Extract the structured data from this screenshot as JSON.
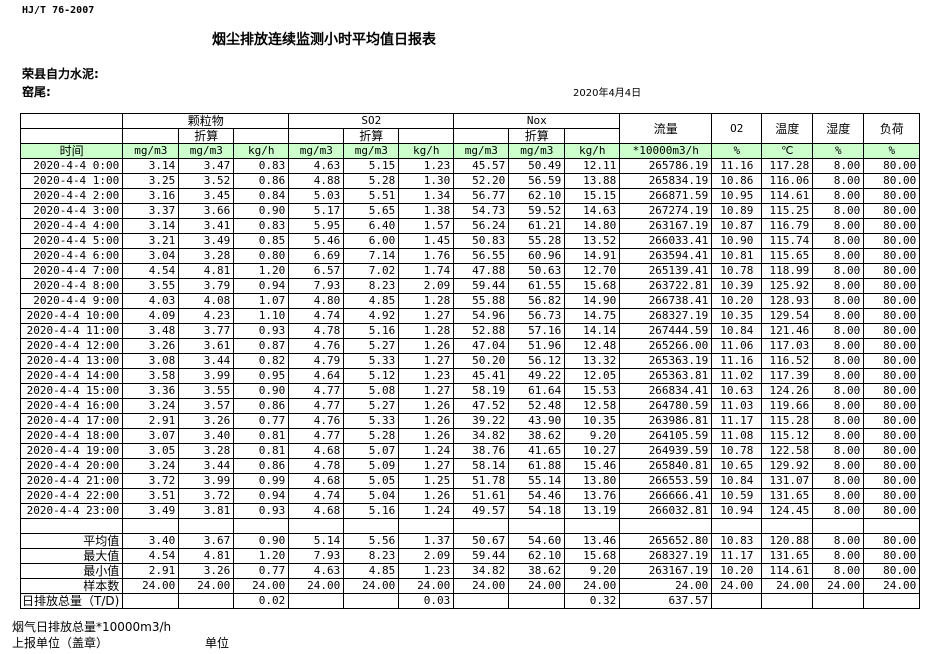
{
  "header": {
    "standard": "HJ/T  76-2007",
    "title": "烟尘排放连续监测小时平均值日报表",
    "company": "荣县自力水泥:",
    "kiln": "窑尾:",
    "date": "2020年4月4日"
  },
  "table": {
    "groups": {
      "particulate": "颗粒物",
      "so2": "SO2",
      "nox": "Nox",
      "converted": "折算",
      "flow": "流量",
      "o2": "O2",
      "temp": "温度",
      "humidity": "湿度",
      "load": "负荷",
      "time": "时间"
    },
    "units": [
      "mg/m3",
      "mg/m3",
      "kg/h",
      "mg/m3",
      "mg/m3",
      "kg/h",
      "mg/m3",
      "mg/m3",
      "kg/h",
      "*10000m3/h",
      "%",
      "℃",
      "%",
      "%"
    ],
    "rows": [
      [
        "2020-4-4 0:00",
        "3.14",
        "3.47",
        "0.83",
        "4.63",
        "5.15",
        "1.23",
        "45.57",
        "50.49",
        "12.11",
        "265786.19",
        "11.16",
        "117.28",
        "8.00",
        "80.00"
      ],
      [
        "2020-4-4 1:00",
        "3.25",
        "3.52",
        "0.86",
        "4.88",
        "5.28",
        "1.30",
        "52.20",
        "56.59",
        "13.88",
        "265834.19",
        "10.86",
        "116.06",
        "8.00",
        "80.00"
      ],
      [
        "2020-4-4 2:00",
        "3.16",
        "3.45",
        "0.84",
        "5.03",
        "5.51",
        "1.34",
        "56.77",
        "62.10",
        "15.15",
        "266871.59",
        "10.95",
        "114.61",
        "8.00",
        "80.00"
      ],
      [
        "2020-4-4 3:00",
        "3.37",
        "3.66",
        "0.90",
        "5.17",
        "5.65",
        "1.38",
        "54.73",
        "59.52",
        "14.63",
        "267274.19",
        "10.89",
        "115.25",
        "8.00",
        "80.00"
      ],
      [
        "2020-4-4 4:00",
        "3.14",
        "3.41",
        "0.83",
        "5.95",
        "6.40",
        "1.57",
        "56.24",
        "61.21",
        "14.80",
        "263167.19",
        "10.87",
        "116.79",
        "8.00",
        "80.00"
      ],
      [
        "2020-4-4 5:00",
        "3.21",
        "3.49",
        "0.85",
        "5.46",
        "6.00",
        "1.45",
        "50.83",
        "55.28",
        "13.52",
        "266033.41",
        "10.90",
        "115.74",
        "8.00",
        "80.00"
      ],
      [
        "2020-4-4 6:00",
        "3.04",
        "3.28",
        "0.80",
        "6.69",
        "7.14",
        "1.76",
        "56.55",
        "60.96",
        "14.91",
        "263594.41",
        "10.81",
        "115.65",
        "8.00",
        "80.00"
      ],
      [
        "2020-4-4 7:00",
        "4.54",
        "4.81",
        "1.20",
        "6.57",
        "7.02",
        "1.74",
        "47.88",
        "50.63",
        "12.70",
        "265139.41",
        "10.78",
        "118.99",
        "8.00",
        "80.00"
      ],
      [
        "2020-4-4 8:00",
        "3.55",
        "3.79",
        "0.94",
        "7.93",
        "8.23",
        "2.09",
        "59.44",
        "61.55",
        "15.68",
        "263722.81",
        "10.39",
        "125.92",
        "8.00",
        "80.00"
      ],
      [
        "2020-4-4 9:00",
        "4.03",
        "4.08",
        "1.07",
        "4.80",
        "4.85",
        "1.28",
        "55.88",
        "56.82",
        "14.90",
        "266738.41",
        "10.20",
        "128.93",
        "8.00",
        "80.00"
      ],
      [
        "2020-4-4 10:00",
        "4.09",
        "4.23",
        "1.10",
        "4.74",
        "4.92",
        "1.27",
        "54.96",
        "56.73",
        "14.75",
        "268327.19",
        "10.35",
        "129.54",
        "8.00",
        "80.00"
      ],
      [
        "2020-4-4 11:00",
        "3.48",
        "3.77",
        "0.93",
        "4.78",
        "5.16",
        "1.28",
        "52.88",
        "57.16",
        "14.14",
        "267444.59",
        "10.84",
        "121.46",
        "8.00",
        "80.00"
      ],
      [
        "2020-4-4 12:00",
        "3.26",
        "3.61",
        "0.87",
        "4.76",
        "5.27",
        "1.26",
        "47.04",
        "51.96",
        "12.48",
        "265266.00",
        "11.06",
        "117.03",
        "8.00",
        "80.00"
      ],
      [
        "2020-4-4 13:00",
        "3.08",
        "3.44",
        "0.82",
        "4.79",
        "5.33",
        "1.27",
        "50.20",
        "56.12",
        "13.32",
        "265363.19",
        "11.16",
        "116.52",
        "8.00",
        "80.00"
      ],
      [
        "2020-4-4 14:00",
        "3.58",
        "3.99",
        "0.95",
        "4.64",
        "5.12",
        "1.23",
        "45.41",
        "49.22",
        "12.05",
        "265363.81",
        "11.02",
        "117.39",
        "8.00",
        "80.00"
      ],
      [
        "2020-4-4 15:00",
        "3.36",
        "3.55",
        "0.90",
        "4.77",
        "5.08",
        "1.27",
        "58.19",
        "61.64",
        "15.53",
        "266834.41",
        "10.63",
        "124.26",
        "8.00",
        "80.00"
      ],
      [
        "2020-4-4 16:00",
        "3.24",
        "3.57",
        "0.86",
        "4.77",
        "5.27",
        "1.26",
        "47.52",
        "52.48",
        "12.58",
        "264780.59",
        "11.03",
        "119.66",
        "8.00",
        "80.00"
      ],
      [
        "2020-4-4 17:00",
        "2.91",
        "3.26",
        "0.77",
        "4.76",
        "5.33",
        "1.26",
        "39.22",
        "43.90",
        "10.35",
        "263986.81",
        "11.17",
        "115.28",
        "8.00",
        "80.00"
      ],
      [
        "2020-4-4 18:00",
        "3.07",
        "3.40",
        "0.81",
        "4.77",
        "5.28",
        "1.26",
        "34.82",
        "38.62",
        "9.20",
        "264105.59",
        "11.08",
        "115.12",
        "8.00",
        "80.00"
      ],
      [
        "2020-4-4 19:00",
        "3.05",
        "3.28",
        "0.81",
        "4.68",
        "5.07",
        "1.24",
        "38.76",
        "41.65",
        "10.27",
        "264939.59",
        "10.78",
        "122.58",
        "8.00",
        "80.00"
      ],
      [
        "2020-4-4 20:00",
        "3.24",
        "3.44",
        "0.86",
        "4.78",
        "5.09",
        "1.27",
        "58.14",
        "61.88",
        "15.46",
        "265840.81",
        "10.65",
        "129.92",
        "8.00",
        "80.00"
      ],
      [
        "2020-4-4 21:00",
        "3.72",
        "3.99",
        "0.99",
        "4.68",
        "5.05",
        "1.25",
        "51.78",
        "55.14",
        "13.80",
        "266553.59",
        "10.84",
        "131.07",
        "8.00",
        "80.00"
      ],
      [
        "2020-4-4 22:00",
        "3.51",
        "3.72",
        "0.94",
        "4.74",
        "5.04",
        "1.26",
        "51.61",
        "54.46",
        "13.76",
        "266666.41",
        "10.59",
        "131.65",
        "8.00",
        "80.00"
      ],
      [
        "2020-4-4 23:00",
        "3.49",
        "3.81",
        "0.93",
        "4.68",
        "5.16",
        "1.24",
        "49.57",
        "54.18",
        "13.19",
        "266032.81",
        "10.94",
        "124.45",
        "8.00",
        "80.00"
      ]
    ],
    "summary": [
      [
        "平均值",
        "3.40",
        "3.67",
        "0.90",
        "5.14",
        "5.56",
        "1.37",
        "50.67",
        "54.60",
        "13.46",
        "265652.80",
        "10.83",
        "120.88",
        "8.00",
        "80.00"
      ],
      [
        "最大值",
        "4.54",
        "4.81",
        "1.20",
        "7.93",
        "8.23",
        "2.09",
        "59.44",
        "62.10",
        "15.68",
        "268327.19",
        "11.17",
        "131.65",
        "8.00",
        "80.00"
      ],
      [
        "最小值",
        "2.91",
        "3.26",
        "0.77",
        "4.63",
        "4.85",
        "1.23",
        "34.82",
        "38.62",
        "9.20",
        "263167.19",
        "10.20",
        "114.61",
        "8.00",
        "80.00"
      ],
      [
        "样本数",
        "24.00",
        "24.00",
        "24.00",
        "24.00",
        "24.00",
        "24.00",
        "24.00",
        "24.00",
        "24.00",
        "24.00",
        "24.00",
        "24.00",
        "24.00",
        "24.00"
      ],
      [
        "日排放总量（T/D)",
        "",
        "",
        "0.02",
        "",
        "",
        "0.03",
        "",
        "",
        "0.32",
        "637.57",
        "",
        "",
        "",
        ""
      ]
    ]
  },
  "footer": {
    "flue_total": "烟气日排放总量*10000m3/h",
    "reporter": "上报单位（盖章）",
    "unit": "单位"
  }
}
